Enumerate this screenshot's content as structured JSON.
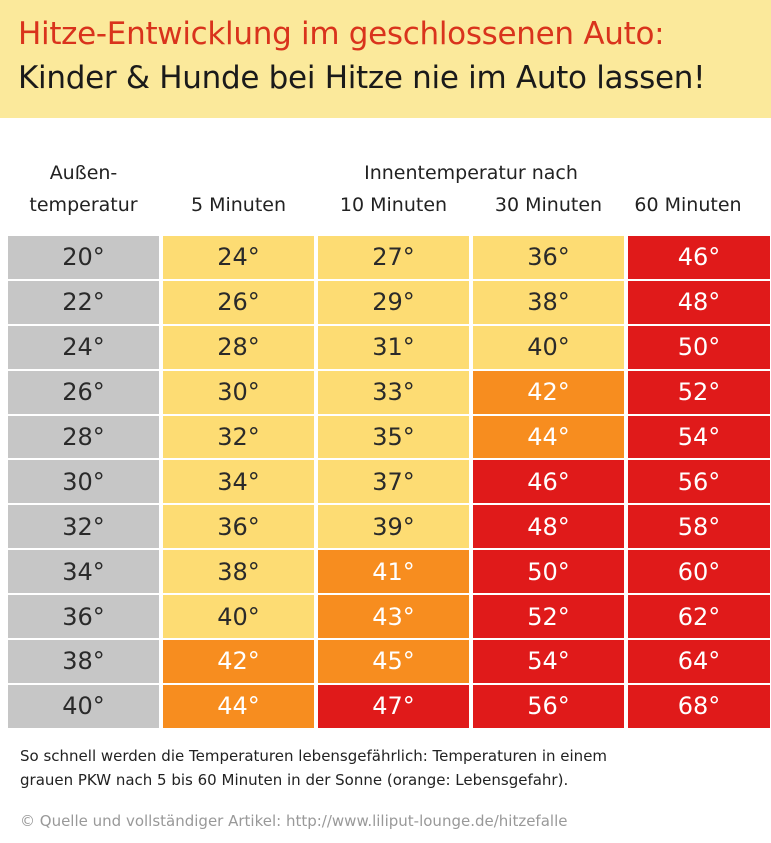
{
  "banner": {
    "line1": "Hitze-Entwicklung im geschlossenen Auto:",
    "line2": "Kinder & Hunde bei Hitze nie im Auto lassen!"
  },
  "header": {
    "col0_line1": "Außen-",
    "col0_line2": "temperatur",
    "group_label": "Innentemperatur nach",
    "col1": "5 Minuten",
    "col2": "10 Minuten",
    "col3": "30 Minuten",
    "col4": "60 Minuten"
  },
  "colors": {
    "grey": "#c6c6c6",
    "yellow": "#fddc73",
    "orange": "#f78d1f",
    "red": "#e01a1a"
  },
  "rows": [
    [
      {
        "v": "20°",
        "c": "grey"
      },
      {
        "v": "24°",
        "c": "yellow"
      },
      {
        "v": "27°",
        "c": "yellow"
      },
      {
        "v": "36°",
        "c": "yellow"
      },
      {
        "v": "46°",
        "c": "red"
      }
    ],
    [
      {
        "v": "22°",
        "c": "grey"
      },
      {
        "v": "26°",
        "c": "yellow"
      },
      {
        "v": "29°",
        "c": "yellow"
      },
      {
        "v": "38°",
        "c": "yellow"
      },
      {
        "v": "48°",
        "c": "red"
      }
    ],
    [
      {
        "v": "24°",
        "c": "grey"
      },
      {
        "v": "28°",
        "c": "yellow"
      },
      {
        "v": "31°",
        "c": "yellow"
      },
      {
        "v": "40°",
        "c": "yellow"
      },
      {
        "v": "50°",
        "c": "red"
      }
    ],
    [
      {
        "v": "26°",
        "c": "grey"
      },
      {
        "v": "30°",
        "c": "yellow"
      },
      {
        "v": "33°",
        "c": "yellow"
      },
      {
        "v": "42°",
        "c": "orange"
      },
      {
        "v": "52°",
        "c": "red"
      }
    ],
    [
      {
        "v": "28°",
        "c": "grey"
      },
      {
        "v": "32°",
        "c": "yellow"
      },
      {
        "v": "35°",
        "c": "yellow"
      },
      {
        "v": "44°",
        "c": "orange"
      },
      {
        "v": "54°",
        "c": "red"
      }
    ],
    [
      {
        "v": "30°",
        "c": "grey"
      },
      {
        "v": "34°",
        "c": "yellow"
      },
      {
        "v": "37°",
        "c": "yellow"
      },
      {
        "v": "46°",
        "c": "red"
      },
      {
        "v": "56°",
        "c": "red"
      }
    ],
    [
      {
        "v": "32°",
        "c": "grey"
      },
      {
        "v": "36°",
        "c": "yellow"
      },
      {
        "v": "39°",
        "c": "yellow"
      },
      {
        "v": "48°",
        "c": "red"
      },
      {
        "v": "58°",
        "c": "red"
      }
    ],
    [
      {
        "v": "34°",
        "c": "grey"
      },
      {
        "v": "38°",
        "c": "yellow"
      },
      {
        "v": "41°",
        "c": "orange"
      },
      {
        "v": "50°",
        "c": "red"
      },
      {
        "v": "60°",
        "c": "red"
      }
    ],
    [
      {
        "v": "36°",
        "c": "grey"
      },
      {
        "v": "40°",
        "c": "yellow"
      },
      {
        "v": "43°",
        "c": "orange"
      },
      {
        "v": "52°",
        "c": "red"
      },
      {
        "v": "62°",
        "c": "red"
      }
    ],
    [
      {
        "v": "38°",
        "c": "grey"
      },
      {
        "v": "42°",
        "c": "orange"
      },
      {
        "v": "45°",
        "c": "orange"
      },
      {
        "v": "54°",
        "c": "red"
      },
      {
        "v": "64°",
        "c": "red"
      }
    ],
    [
      {
        "v": "40°",
        "c": "grey"
      },
      {
        "v": "44°",
        "c": "orange"
      },
      {
        "v": "47°",
        "c": "red"
      },
      {
        "v": "56°",
        "c": "red"
      },
      {
        "v": "68°",
        "c": "red"
      }
    ]
  ],
  "note": {
    "line1": "So schnell werden die Temperaturen lebensgefährlich: Temperaturen in einem",
    "line2": "grauen PKW nach 5 bis 60 Minuten in der Sonne (orange: Lebensgefahr)."
  },
  "source": "© Quelle und vollständiger Artikel: http://www.liliput-lounge.de/hitzefalle"
}
